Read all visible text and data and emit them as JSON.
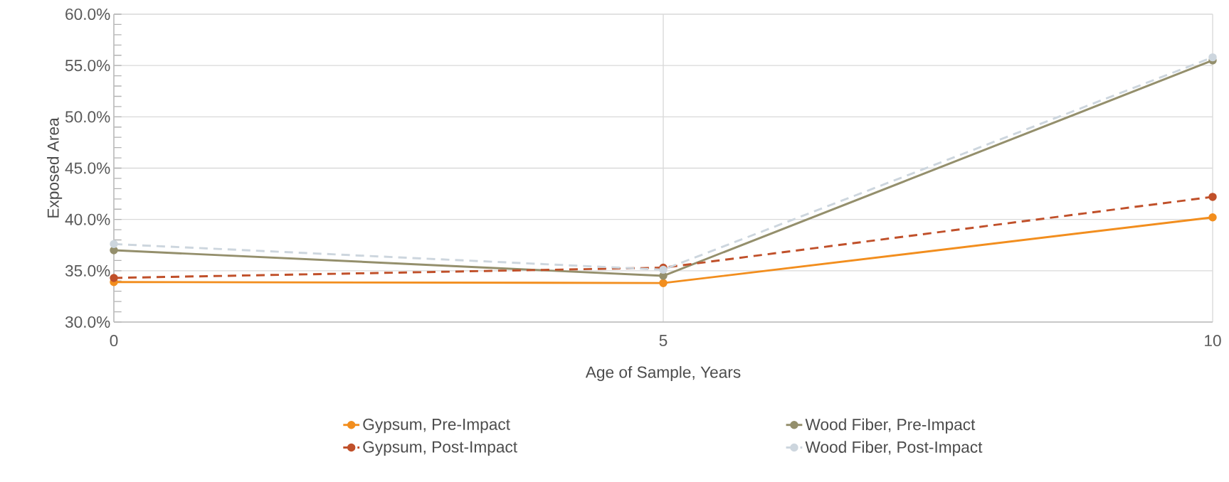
{
  "chart_data": {
    "type": "line",
    "xlabel": "Age of Sample, Years",
    "ylabel": "Exposed Area",
    "x": [
      0,
      5,
      10
    ],
    "series": [
      {
        "name": "Gypsum, Pre-Impact",
        "color": "#f28e1e",
        "line_style": "solid",
        "values": [
          33.9,
          33.8,
          40.2
        ]
      },
      {
        "name": "Wood Fiber, Pre-Impact",
        "color": "#948f6c",
        "line_style": "solid",
        "values": [
          37.0,
          34.5,
          55.5
        ]
      },
      {
        "name": "Gypsum, Post-Impact",
        "color": "#c0502a",
        "line_style": "dashed",
        "values": [
          34.3,
          35.3,
          42.2
        ]
      },
      {
        "name": "Wood Fiber, Post-Impact",
        "color": "#cdd6de",
        "line_style": "dashed",
        "values": [
          37.6,
          35.1,
          55.8
        ]
      }
    ],
    "xlim": [
      0,
      10
    ],
    "xticks": [
      0,
      5,
      10
    ],
    "ylim": [
      30,
      60
    ],
    "yticks": [
      {
        "value": 30,
        "label": "30.0%"
      },
      {
        "value": 35,
        "label": "35.0%"
      },
      {
        "value": 40,
        "label": "40.0%"
      },
      {
        "value": 45,
        "label": "45.0%"
      },
      {
        "value": 50,
        "label": "50.0%"
      },
      {
        "value": 55,
        "label": "55.0%"
      },
      {
        "value": 60,
        "label": "60.0%"
      }
    ],
    "grid": true,
    "legend": "bottom",
    "marker": "circle"
  }
}
